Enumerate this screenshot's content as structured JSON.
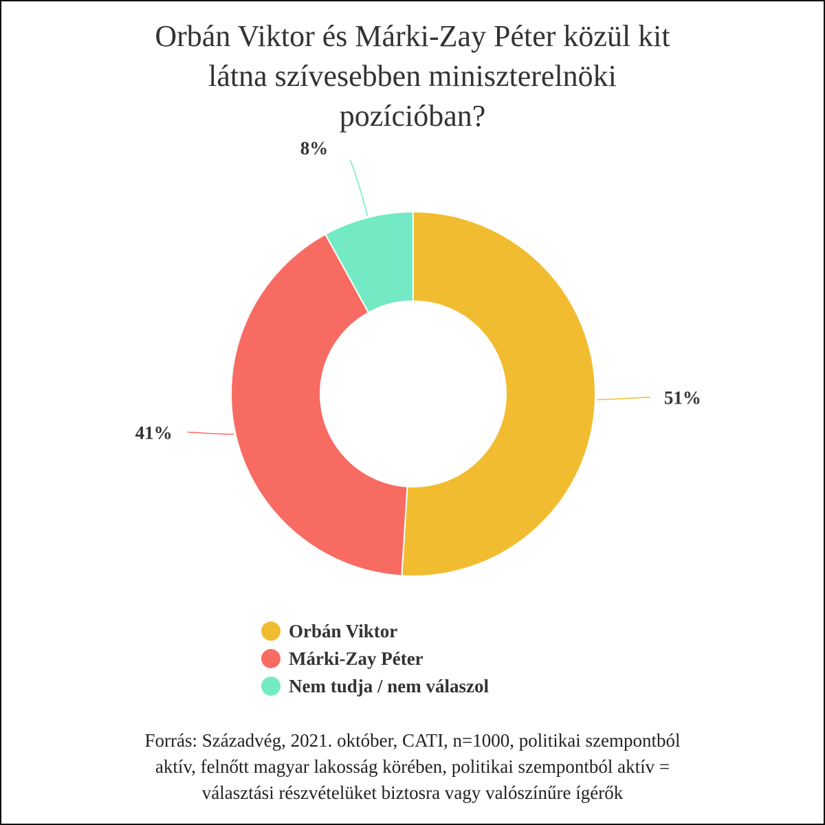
{
  "chart_data": {
    "type": "pie",
    "variant": "donut",
    "title_lines": [
      "Orbán Viktor és Márki-Zay Péter közül kit",
      "látna szívesebben miniszterelnöki",
      "pozícióban?"
    ],
    "series": [
      {
        "name": "Orbán Viktor",
        "value": 51,
        "label": "51%",
        "color": "#F2BC30"
      },
      {
        "name": "Márki-Zay Péter",
        "value": 41,
        "label": "41%",
        "color": "#F86B63"
      },
      {
        "name": "Nem tudja / nem válaszol",
        "value": 8,
        "label": "8%",
        "color": "#73EAC4"
      }
    ],
    "legend_position": "bottom",
    "source_lines": [
      "Forrás: Századvég, 2021. október, CATI, n=1000, politikai szempontból",
      "aktív, felnőtt magyar lakosság körében, politikai szempontból aktív =",
      "választási részvételüket biztosra vagy valószínűre ígérők"
    ]
  }
}
